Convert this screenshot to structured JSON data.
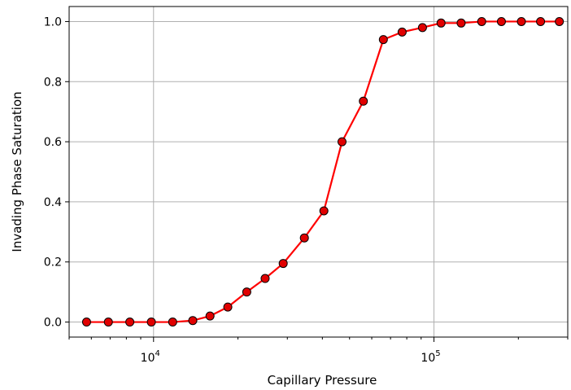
{
  "chart_data": {
    "type": "line",
    "title": "",
    "xlabel": "Capillary Pressure",
    "ylabel": "Invading Phase Saturation",
    "x_scale": "log",
    "xlim": [
      5000,
      300000
    ],
    "ylim": [
      -0.05,
      1.05
    ],
    "x_ticks": [
      {
        "value": 10000,
        "base": "10",
        "exp": "4"
      },
      {
        "value": 100000,
        "base": "10",
        "exp": "5"
      }
    ],
    "y_ticks": [
      {
        "value": 0.0,
        "label": "0.0"
      },
      {
        "value": 0.2,
        "label": "0.2"
      },
      {
        "value": 0.4,
        "label": "0.4"
      },
      {
        "value": 0.6,
        "label": "0.6"
      },
      {
        "value": 0.8,
        "label": "0.8"
      },
      {
        "value": 1.0,
        "label": "1.0"
      }
    ],
    "grid": true,
    "legend": "none",
    "line_color": "#ff0000",
    "marker_face": "#e00000",
    "marker_edge": "#000000",
    "series": [
      {
        "x": [
          5770,
          6900,
          8230,
          9820,
          11700,
          13800,
          15900,
          18400,
          21500,
          25000,
          29000,
          34500,
          40500,
          47000,
          56000,
          66000,
          77000,
          91000,
          106000,
          125000,
          148000,
          174000,
          205000,
          240000,
          280000
        ],
        "y": [
          0.0,
          0.0,
          0.0,
          0.0,
          0.0,
          0.005,
          0.02,
          0.05,
          0.1,
          0.145,
          0.195,
          0.28,
          0.37,
          0.6,
          0.735,
          0.94,
          0.965,
          0.98,
          0.995,
          0.995,
          1.0,
          1.0,
          1.0,
          1.0,
          1.0
        ]
      }
    ]
  }
}
